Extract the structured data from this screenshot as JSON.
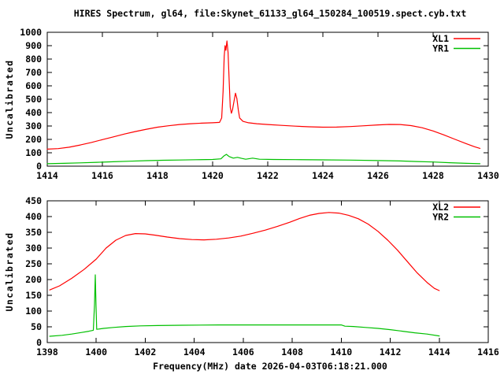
{
  "title": "HIRES Spectrum, gl64, file:Skynet_61133_gl64_150284_100519.spect.cyb.txt",
  "xlabel": "Frequency(MHz) date 2026-04-03T06:18:21.000",
  "colors": {
    "background": "#ffffff",
    "frame": "#000000",
    "text": "#000000",
    "series_red": "#ff0000",
    "series_green": "#00c000"
  },
  "chart_data": [
    {
      "type": "line",
      "title": "",
      "xlabel": "",
      "ylabel": "Uncalibrated",
      "xlim": [
        1414,
        1430
      ],
      "ylim": [
        0,
        1000
      ],
      "xtick_step": 2,
      "ytick_step": 100,
      "grid": false,
      "legend_position": "top-right",
      "legend": [
        "XL1",
        "YR1"
      ],
      "series": [
        {
          "name": "XL1",
          "color": "#ff0000",
          "points": [
            [
              1414.0,
              127
            ],
            [
              1414.4,
              131
            ],
            [
              1414.8,
              142
            ],
            [
              1415.2,
              158
            ],
            [
              1415.6,
              177
            ],
            [
              1416.0,
              198
            ],
            [
              1416.4,
              219
            ],
            [
              1416.8,
              240
            ],
            [
              1417.2,
              259
            ],
            [
              1417.6,
              276
            ],
            [
              1418.0,
              291
            ],
            [
              1418.4,
              302
            ],
            [
              1418.8,
              311
            ],
            [
              1419.2,
              317
            ],
            [
              1419.6,
              321
            ],
            [
              1420.0,
              324
            ],
            [
              1420.25,
              327
            ],
            [
              1420.33,
              360
            ],
            [
              1420.38,
              560
            ],
            [
              1420.42,
              820
            ],
            [
              1420.45,
              900
            ],
            [
              1420.48,
              865
            ],
            [
              1420.52,
              935
            ],
            [
              1420.56,
              850
            ],
            [
              1420.6,
              640
            ],
            [
              1420.64,
              440
            ],
            [
              1420.68,
              395
            ],
            [
              1420.72,
              420
            ],
            [
              1420.78,
              490
            ],
            [
              1420.83,
              545
            ],
            [
              1420.88,
              505
            ],
            [
              1420.93,
              420
            ],
            [
              1420.98,
              360
            ],
            [
              1421.1,
              335
            ],
            [
              1421.3,
              324
            ],
            [
              1421.6,
              317
            ],
            [
              1422.0,
              311
            ],
            [
              1422.5,
              305
            ],
            [
              1423.0,
              299
            ],
            [
              1423.5,
              294
            ],
            [
              1424.0,
              291
            ],
            [
              1424.5,
              292
            ],
            [
              1425.0,
              296
            ],
            [
              1425.5,
              302
            ],
            [
              1426.0,
              308
            ],
            [
              1426.4,
              312
            ],
            [
              1426.8,
              311
            ],
            [
              1427.2,
              303
            ],
            [
              1427.6,
              287
            ],
            [
              1428.0,
              263
            ],
            [
              1428.4,
              233
            ],
            [
              1428.8,
              200
            ],
            [
              1429.2,
              168
            ],
            [
              1429.5,
              145
            ],
            [
              1429.7,
              133
            ]
          ]
        },
        {
          "name": "YR1",
          "color": "#00c000",
          "points": [
            [
              1414.0,
              18
            ],
            [
              1414.6,
              21
            ],
            [
              1415.2,
              25
            ],
            [
              1415.8,
              29
            ],
            [
              1416.4,
              33
            ],
            [
              1417.0,
              37
            ],
            [
              1417.6,
              41
            ],
            [
              1418.2,
              44
            ],
            [
              1418.8,
              46
            ],
            [
              1419.4,
              48
            ],
            [
              1420.0,
              50
            ],
            [
              1420.3,
              55
            ],
            [
              1420.4,
              75
            ],
            [
              1420.5,
              88
            ],
            [
              1420.6,
              72
            ],
            [
              1420.75,
              60
            ],
            [
              1420.9,
              66
            ],
            [
              1421.05,
              58
            ],
            [
              1421.2,
              52
            ],
            [
              1421.45,
              60
            ],
            [
              1421.7,
              52
            ],
            [
              1422.2,
              50
            ],
            [
              1423.0,
              49
            ],
            [
              1424.0,
              47
            ],
            [
              1425.0,
              45
            ],
            [
              1426.0,
              42
            ],
            [
              1426.8,
              39
            ],
            [
              1427.4,
              35
            ],
            [
              1428.0,
              31
            ],
            [
              1428.6,
              26
            ],
            [
              1429.2,
              21
            ],
            [
              1429.7,
              18
            ]
          ]
        }
      ]
    },
    {
      "type": "line",
      "title": "",
      "xlabel": "",
      "ylabel": "Uncalibrated",
      "xlim": [
        1398,
        1416
      ],
      "ylim": [
        0,
        450
      ],
      "xtick_step": 2,
      "ytick_step": 50,
      "grid": false,
      "legend_position": "top-right",
      "legend": [
        "XL2",
        "YR2"
      ],
      "series": [
        {
          "name": "XL2",
          "color": "#ff0000",
          "points": [
            [
              1398.1,
              167
            ],
            [
              1398.5,
              180
            ],
            [
              1399.0,
              204
            ],
            [
              1399.5,
              232
            ],
            [
              1400.0,
              265
            ],
            [
              1400.4,
              300
            ],
            [
              1400.8,
              325
            ],
            [
              1401.2,
              340
            ],
            [
              1401.6,
              346
            ],
            [
              1402.0,
              345
            ],
            [
              1402.4,
              341
            ],
            [
              1402.9,
              335
            ],
            [
              1403.4,
              330
            ],
            [
              1403.9,
              327
            ],
            [
              1404.4,
              326
            ],
            [
              1404.9,
              328
            ],
            [
              1405.4,
              332
            ],
            [
              1405.9,
              338
            ],
            [
              1406.4,
              347
            ],
            [
              1406.9,
              357
            ],
            [
              1407.4,
              369
            ],
            [
              1407.9,
              382
            ],
            [
              1408.3,
              394
            ],
            [
              1408.7,
              404
            ],
            [
              1409.1,
              410
            ],
            [
              1409.5,
              413
            ],
            [
              1409.9,
              411
            ],
            [
              1410.3,
              404
            ],
            [
              1410.7,
              393
            ],
            [
              1411.1,
              376
            ],
            [
              1411.5,
              353
            ],
            [
              1411.9,
              325
            ],
            [
              1412.3,
              293
            ],
            [
              1412.7,
              257
            ],
            [
              1413.1,
              221
            ],
            [
              1413.5,
              191
            ],
            [
              1413.8,
              172
            ],
            [
              1414.0,
              165
            ]
          ]
        },
        {
          "name": "YR2",
          "color": "#00c000",
          "points": [
            [
              1398.1,
              20
            ],
            [
              1398.6,
              23
            ],
            [
              1399.0,
              27
            ],
            [
              1399.4,
              32
            ],
            [
              1399.7,
              36
            ],
            [
              1399.88,
              39
            ],
            [
              1399.93,
              120
            ],
            [
              1399.96,
              215
            ],
            [
              1399.99,
              120
            ],
            [
              1400.02,
              42
            ],
            [
              1400.3,
              45
            ],
            [
              1400.7,
              48
            ],
            [
              1401.2,
              51
            ],
            [
              1401.8,
              53
            ],
            [
              1402.5,
              54
            ],
            [
              1403.5,
              55
            ],
            [
              1405.0,
              56
            ],
            [
              1407.0,
              56
            ],
            [
              1409.0,
              56
            ],
            [
              1410.0,
              56
            ],
            [
              1410.15,
              52
            ],
            [
              1410.5,
              51
            ],
            [
              1411.0,
              48
            ],
            [
              1411.5,
              45
            ],
            [
              1412.0,
              41
            ],
            [
              1412.5,
              36
            ],
            [
              1413.0,
              31
            ],
            [
              1413.5,
              27
            ],
            [
              1414.0,
              21
            ]
          ]
        }
      ]
    }
  ]
}
